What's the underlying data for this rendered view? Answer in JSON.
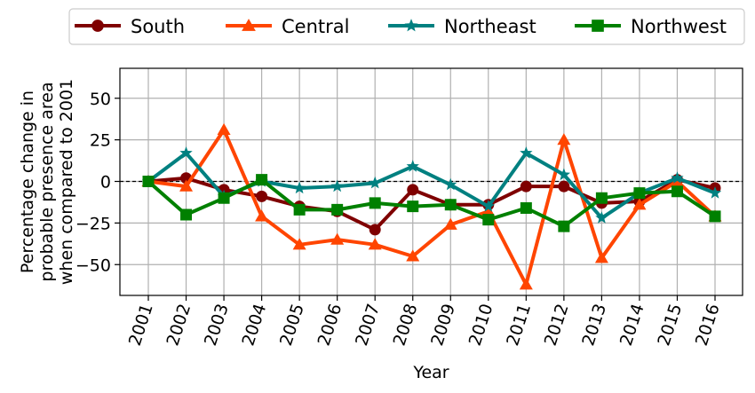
{
  "chart_data": {
    "type": "line",
    "title": "",
    "xlabel": "Year",
    "ylabel_lines": [
      "Percentage change in",
      "probable presence area",
      "when compared to 2001"
    ],
    "ylim": [
      -68,
      68
    ],
    "yticks": [
      50,
      25,
      0,
      -25,
      -50
    ],
    "ytick_labels": [
      "50",
      "25",
      "0",
      "−25",
      "−50"
    ],
    "grid": true,
    "legend_position": "top, above plot",
    "zero_line": "dashed",
    "x": [
      "2001",
      "2002",
      "2003",
      "2004",
      "2005",
      "2006",
      "2007",
      "2008",
      "2009",
      "2010",
      "2011",
      "2012",
      "2013",
      "2014",
      "2015",
      "2016"
    ],
    "series": [
      {
        "name": "South",
        "color": "#7f0000",
        "marker": "circle",
        "values": [
          0,
          2,
          -5,
          -9,
          -15,
          -18,
          -29,
          -5,
          -14,
          -14,
          -3,
          -3,
          -13,
          -12,
          1,
          -4
        ]
      },
      {
        "name": "Central",
        "color": "#ff4500",
        "marker": "triangle",
        "values": [
          0,
          -3,
          31,
          -21,
          -38,
          -35,
          -38,
          -45,
          -26,
          -18,
          -62,
          25,
          -46,
          -14,
          0,
          -21
        ]
      },
      {
        "name": "Northeast",
        "color": "#008080",
        "marker": "star",
        "values": [
          0,
          17,
          -9,
          0,
          -4,
          -3,
          -1,
          9,
          -2,
          -15,
          17,
          4,
          -22,
          -7,
          2,
          -7
        ]
      },
      {
        "name": "Northwest",
        "color": "#008000",
        "marker": "square",
        "values": [
          0,
          -20,
          -10,
          1,
          -17,
          -17,
          -13,
          -15,
          -14,
          -23,
          -16,
          -27,
          -10,
          -7,
          -6,
          -21
        ]
      }
    ]
  }
}
